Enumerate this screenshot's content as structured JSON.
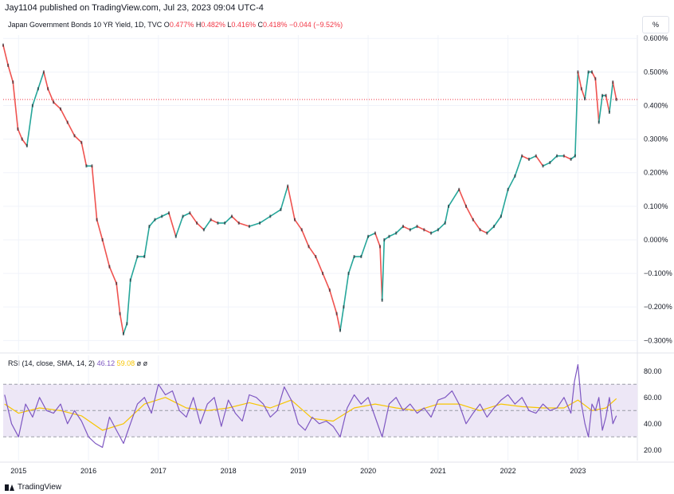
{
  "header": {
    "published": "Jay1104 published on TradingView.com, Jul 23, 2023 09:04 UTC-4"
  },
  "legend": {
    "symbol": "Japan Government Bonds 10 YR Yield, 1D, TVC",
    "o_label": "O",
    "o_value": "0.477%",
    "h_label": "H",
    "h_value": "0.482%",
    "l_label": "L",
    "l_value": "0.416%",
    "c_label": "C",
    "c_value": "0.418%",
    "change": "−0.044 (−9.52%)"
  },
  "scale_button": "%",
  "rsi_legend": {
    "label": "RSI (14, close, SMA, 14, 2)",
    "rsi_value": "46.12",
    "sma_value": "59.08",
    "extra1": "ø",
    "extra2": "ø"
  },
  "brand": {
    "name": "TradingView"
  },
  "colors": {
    "up": "#26a69a",
    "down": "#ef5350",
    "neutral": "#131722",
    "rsi_line": "#7e57c2",
    "rsi_sma": "#f7c500",
    "rsi_band": "#ede7f6",
    "price_line": "#f23645",
    "grid": "#f0f3fa"
  },
  "chart_data": [
    {
      "type": "line",
      "title": "Japan Government Bonds 10 YR Yield, 1D, TVC",
      "y_unit": "%",
      "ylim": [
        -0.33,
        0.61
      ],
      "yticks": [
        0.6,
        0.5,
        0.4,
        0.3,
        0.2,
        0.1,
        0.0,
        -0.1,
        -0.2,
        -0.3
      ],
      "ytick_labels": [
        "0.600%",
        "0.500%",
        "0.400%",
        "0.300%",
        "0.200%",
        "0.100%",
        "0.000%",
        "−0.100%",
        "−0.200%",
        "−0.300%"
      ],
      "last_price_line": 0.418,
      "x_labels": [
        "2015",
        "2016",
        "2017",
        "2018",
        "2019",
        "2020",
        "2021",
        "2022",
        "2023"
      ],
      "xlim": [
        2014.78,
        2023.85
      ],
      "grid": true,
      "series": [
        {
          "x": [
            2014.78,
            2014.85,
            2014.92,
            2014.99,
            2015.05,
            2015.12,
            2015.2,
            2015.28,
            2015.36,
            2015.42,
            2015.5,
            2015.6,
            2015.7,
            2015.8,
            2015.9,
            2015.97,
            2016.05,
            2016.12,
            2016.2,
            2016.3,
            2016.4,
            2016.45,
            2016.5,
            2016.55,
            2016.6,
            2016.7,
            2016.8,
            2016.87,
            2016.95,
            2017.05,
            2017.15,
            2017.25,
            2017.35,
            2017.45,
            2017.55,
            2017.65,
            2017.75,
            2017.85,
            2017.95,
            2018.05,
            2018.15,
            2018.3,
            2018.45,
            2018.6,
            2018.75,
            2018.85,
            2018.95,
            2019.05,
            2019.15,
            2019.25,
            2019.35,
            2019.45,
            2019.55,
            2019.6,
            2019.65,
            2019.72,
            2019.8,
            2019.9,
            2020.0,
            2020.1,
            2020.17,
            2020.2,
            2020.23,
            2020.3,
            2020.4,
            2020.5,
            2020.6,
            2020.7,
            2020.8,
            2020.9,
            2021.0,
            2021.1,
            2021.15,
            2021.3,
            2021.4,
            2021.5,
            2021.6,
            2021.7,
            2021.8,
            2021.9,
            2022.0,
            2022.1,
            2022.2,
            2022.3,
            2022.4,
            2022.5,
            2022.6,
            2022.7,
            2022.8,
            2022.9,
            2022.96,
            2023.0,
            2023.05,
            2023.1,
            2023.15,
            2023.2,
            2023.25,
            2023.3,
            2023.35,
            2023.4,
            2023.45,
            2023.5,
            2023.55
          ],
          "values": [
            0.58,
            0.52,
            0.47,
            0.33,
            0.3,
            0.28,
            0.4,
            0.45,
            0.5,
            0.45,
            0.41,
            0.39,
            0.35,
            0.31,
            0.29,
            0.22,
            0.22,
            0.06,
            0.0,
            -0.08,
            -0.13,
            -0.22,
            -0.28,
            -0.25,
            -0.12,
            -0.05,
            -0.05,
            0.04,
            0.06,
            0.07,
            0.08,
            0.01,
            0.07,
            0.08,
            0.05,
            0.03,
            0.06,
            0.05,
            0.05,
            0.07,
            0.05,
            0.04,
            0.05,
            0.07,
            0.09,
            0.16,
            0.06,
            0.03,
            -0.02,
            -0.05,
            -0.1,
            -0.15,
            -0.22,
            -0.27,
            -0.2,
            -0.1,
            -0.05,
            -0.05,
            0.01,
            0.02,
            -0.02,
            -0.18,
            0.0,
            0.01,
            0.02,
            0.04,
            0.03,
            0.04,
            0.03,
            0.02,
            0.03,
            0.05,
            0.1,
            0.15,
            0.1,
            0.06,
            0.03,
            0.02,
            0.04,
            0.07,
            0.15,
            0.19,
            0.25,
            0.24,
            0.25,
            0.22,
            0.23,
            0.25,
            0.25,
            0.24,
            0.25,
            0.5,
            0.45,
            0.42,
            0.5,
            0.5,
            0.48,
            0.35,
            0.43,
            0.43,
            0.38,
            0.47,
            0.418
          ]
        }
      ]
    },
    {
      "type": "line",
      "title": "RSI (14, close, SMA, 14, 2)",
      "ylim": [
        12,
        92
      ],
      "yticks": [
        80,
        60,
        40,
        20
      ],
      "ytick_labels": [
        "80.00",
        "60.00",
        "40.00",
        "20.00"
      ],
      "band": [
        30,
        70
      ],
      "midline": 50,
      "xlim": [
        2014.78,
        2023.85
      ],
      "grid": true,
      "series": [
        {
          "name": "RSI",
          "x": [
            2014.8,
            2014.9,
            2015.0,
            2015.1,
            2015.2,
            2015.3,
            2015.4,
            2015.5,
            2015.6,
            2015.7,
            2015.8,
            2015.9,
            2016.0,
            2016.1,
            2016.2,
            2016.3,
            2016.4,
            2016.5,
            2016.6,
            2016.7,
            2016.8,
            2016.9,
            2017.0,
            2017.1,
            2017.2,
            2017.3,
            2017.4,
            2017.5,
            2017.6,
            2017.7,
            2017.8,
            2017.9,
            2018.0,
            2018.1,
            2018.2,
            2018.3,
            2018.4,
            2018.5,
            2018.6,
            2018.7,
            2018.8,
            2018.9,
            2019.0,
            2019.1,
            2019.2,
            2019.3,
            2019.4,
            2019.5,
            2019.6,
            2019.7,
            2019.8,
            2019.9,
            2020.0,
            2020.1,
            2020.2,
            2020.3,
            2020.4,
            2020.5,
            2020.6,
            2020.7,
            2020.8,
            2020.9,
            2021.0,
            2021.1,
            2021.2,
            2021.3,
            2021.4,
            2021.5,
            2021.6,
            2021.7,
            2021.8,
            2021.9,
            2022.0,
            2022.1,
            2022.2,
            2022.3,
            2022.4,
            2022.5,
            2022.6,
            2022.7,
            2022.8,
            2022.9,
            2022.95,
            2023.0,
            2023.05,
            2023.1,
            2023.15,
            2023.2,
            2023.25,
            2023.3,
            2023.35,
            2023.4,
            2023.45,
            2023.5,
            2023.55
          ],
          "values": [
            62,
            40,
            30,
            55,
            45,
            60,
            50,
            48,
            55,
            40,
            50,
            42,
            30,
            25,
            22,
            45,
            35,
            25,
            40,
            55,
            60,
            48,
            70,
            62,
            65,
            50,
            45,
            60,
            40,
            55,
            60,
            38,
            58,
            48,
            42,
            62,
            60,
            55,
            45,
            50,
            68,
            58,
            40,
            35,
            45,
            40,
            42,
            38,
            30,
            52,
            62,
            55,
            60,
            45,
            30,
            55,
            60,
            50,
            55,
            48,
            52,
            45,
            58,
            60,
            65,
            55,
            40,
            48,
            55,
            45,
            52,
            58,
            62,
            55,
            60,
            50,
            48,
            55,
            50,
            52,
            60,
            48,
            72,
            85,
            55,
            40,
            30,
            55,
            50,
            60,
            35,
            45,
            60,
            40,
            46.12
          ]
        },
        {
          "name": "SMA",
          "x": [
            2014.8,
            2015.0,
            2015.3,
            2015.6,
            2015.9,
            2016.2,
            2016.5,
            2016.8,
            2017.1,
            2017.4,
            2017.7,
            2018.0,
            2018.3,
            2018.6,
            2018.9,
            2019.2,
            2019.5,
            2019.8,
            2020.1,
            2020.4,
            2020.7,
            2021.0,
            2021.3,
            2021.6,
            2021.9,
            2022.2,
            2022.5,
            2022.8,
            2023.0,
            2023.2,
            2023.4,
            2023.55
          ],
          "values": [
            55,
            48,
            52,
            50,
            46,
            35,
            40,
            55,
            60,
            52,
            50,
            52,
            56,
            52,
            58,
            44,
            42,
            52,
            55,
            52,
            50,
            55,
            55,
            50,
            55,
            53,
            52,
            52,
            58,
            50,
            52,
            59.08
          ]
        }
      ]
    }
  ]
}
